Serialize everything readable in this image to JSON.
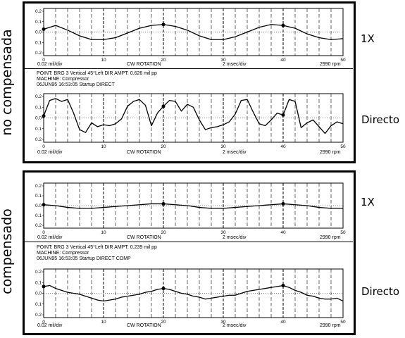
{
  "panels": [
    {
      "side_label": "no compensada",
      "info": {
        "point": "POINT: BRG 3 Vertical  45°Left  DIR AMPT: 0.626 mil pp",
        "machine": "MACHINE: Compressor",
        "date": "06JUN95 16:53:05 Startup  DIRECT"
      }
    },
    {
      "side_label": "compensado",
      "info": {
        "point": "POINT: BRG 3 Vertical  45°Left  DIR AMPT: 0.239 mil pp",
        "machine": "MACHINE: Compressor",
        "date": "06JUN95 16:53:05 Startup  DIRECT COMP"
      }
    }
  ],
  "footer": {
    "scale": "0.02 mil/div",
    "rotation": "CW  ROTATION",
    "time": "2 msec/div",
    "rpm": "2990 rpm"
  },
  "trace_labels": {
    "one_x": "1X",
    "direct": "Directo"
  },
  "chart_data": [
    {
      "type": "line",
      "title": "no compensada — 1X",
      "xlabel": "",
      "ylabel": "",
      "x_ticks": [
        0,
        10,
        20,
        30,
        40,
        50
      ],
      "y_ticks": [
        "0.2",
        "0.1",
        "0.0",
        "0.1",
        "0.2"
      ],
      "xlim": [
        0,
        50
      ],
      "ylim": [
        -0.25,
        0.25
      ],
      "series": [
        {
          "x": [
            0,
            2,
            4,
            6,
            8,
            10,
            12,
            14,
            16,
            18,
            20,
            22,
            24,
            26,
            28,
            30,
            32,
            34,
            36,
            38,
            40,
            42,
            44,
            46,
            48,
            50
          ],
          "y": [
            0.03,
            0.07,
            0.02,
            -0.04,
            -0.08,
            -0.08,
            -0.06,
            -0.01,
            0.04,
            0.07,
            0.08,
            0.06,
            0.02,
            -0.04,
            -0.08,
            -0.08,
            -0.05,
            0.0,
            0.05,
            0.08,
            0.07,
            0.04,
            -0.02,
            -0.06,
            -0.08,
            -0.07
          ]
        }
      ],
      "markers_x": [
        0,
        20,
        40
      ]
    },
    {
      "type": "line",
      "title": "no compensada — Directo",
      "xlabel": "",
      "ylabel": "",
      "x_ticks": [
        0,
        10,
        20,
        30,
        40,
        50
      ],
      "y_ticks": [
        "0.2",
        "0.1",
        "0.0",
        "0.1",
        "0.2"
      ],
      "xlim": [
        0,
        50
      ],
      "ylim": [
        -0.25,
        0.25
      ],
      "series": [
        {
          "x": [
            0,
            1,
            2,
            3,
            4,
            5,
            6,
            7,
            8,
            9,
            10,
            11,
            12,
            13,
            14,
            15,
            16,
            17,
            18,
            19,
            20,
            21,
            22,
            23,
            24,
            25,
            26,
            27,
            28,
            29,
            30,
            31,
            32,
            33,
            34,
            35,
            36,
            37,
            38,
            39,
            40,
            41,
            42,
            43,
            44,
            45,
            46,
            47,
            48,
            49,
            50
          ],
          "y": [
            0.02,
            0.18,
            0.2,
            0.17,
            0.19,
            0.05,
            -0.12,
            -0.15,
            -0.05,
            -0.09,
            -0.07,
            -0.08,
            -0.06,
            -0.01,
            0.12,
            0.17,
            0.19,
            0.13,
            -0.08,
            0.05,
            0.12,
            0.18,
            0.17,
            0.07,
            0.14,
            0.11,
            -0.02,
            -0.12,
            -0.1,
            -0.09,
            -0.07,
            -0.04,
            0.04,
            0.18,
            0.19,
            0.06,
            -0.06,
            -0.08,
            -0.02,
            0.05,
            0.03,
            0.19,
            0.17,
            -0.1,
            -0.05,
            -0.02,
            -0.09,
            -0.16,
            -0.08,
            -0.04,
            -0.06
          ]
        }
      ],
      "markers_x": [
        0,
        20,
        40
      ]
    },
    {
      "type": "line",
      "title": "compensado — 1X",
      "xlabel": "",
      "ylabel": "",
      "x_ticks": [
        0,
        10,
        20,
        30,
        40,
        50
      ],
      "y_ticks": [
        "0.2",
        "0.1",
        "0.0",
        "0.1",
        "0.2"
      ],
      "xlim": [
        0,
        50
      ],
      "ylim": [
        -0.25,
        0.25
      ],
      "series": [
        {
          "x": [
            0,
            2,
            4,
            6,
            8,
            10,
            12,
            14,
            16,
            18,
            20,
            22,
            24,
            26,
            28,
            30,
            32,
            34,
            36,
            38,
            40,
            42,
            44,
            46,
            48,
            50
          ],
          "y": [
            0.01,
            0.0,
            -0.02,
            -0.03,
            -0.03,
            -0.02,
            -0.01,
            0.0,
            0.01,
            0.02,
            0.02,
            0.01,
            0.0,
            -0.02,
            -0.03,
            -0.03,
            -0.02,
            -0.01,
            0.0,
            0.01,
            0.02,
            0.01,
            0.0,
            -0.02,
            -0.03,
            -0.03
          ]
        }
      ],
      "markers_x": [
        0,
        20,
        40
      ]
    },
    {
      "type": "line",
      "title": "compensado — Directo",
      "xlabel": "",
      "ylabel": "",
      "x_ticks": [
        0,
        10,
        20,
        30,
        40,
        50
      ],
      "y_ticks": [
        "0.2",
        "0.1",
        "0.0",
        "0.1",
        "0.2"
      ],
      "xlim": [
        0,
        50
      ],
      "ylim": [
        -0.25,
        0.25
      ],
      "series": [
        {
          "x": [
            0,
            1,
            2,
            3,
            4,
            5,
            6,
            7,
            8,
            9,
            10,
            11,
            12,
            13,
            14,
            15,
            16,
            17,
            18,
            19,
            20,
            21,
            22,
            23,
            24,
            25,
            26,
            27,
            28,
            29,
            30,
            31,
            32,
            33,
            34,
            35,
            36,
            37,
            38,
            39,
            40,
            41,
            42,
            43,
            44,
            45,
            46,
            47,
            48,
            49,
            50
          ],
          "y": [
            0.07,
            0.08,
            0.05,
            0.03,
            0.01,
            0.0,
            -0.01,
            -0.03,
            -0.05,
            -0.07,
            -0.08,
            -0.07,
            -0.06,
            -0.04,
            -0.03,
            -0.02,
            -0.01,
            0.01,
            0.02,
            0.04,
            0.05,
            0.04,
            0.02,
            0.0,
            -0.01,
            -0.03,
            -0.04,
            -0.06,
            -0.05,
            -0.04,
            -0.03,
            -0.02,
            -0.02,
            0.0,
            0.02,
            0.03,
            0.04,
            0.05,
            0.06,
            0.07,
            0.08,
            0.06,
            0.03,
            0.01,
            -0.02,
            -0.03,
            -0.05,
            -0.06,
            -0.06,
            -0.05,
            -0.08
          ]
        }
      ],
      "markers_x": [
        0,
        20,
        40
      ]
    }
  ]
}
